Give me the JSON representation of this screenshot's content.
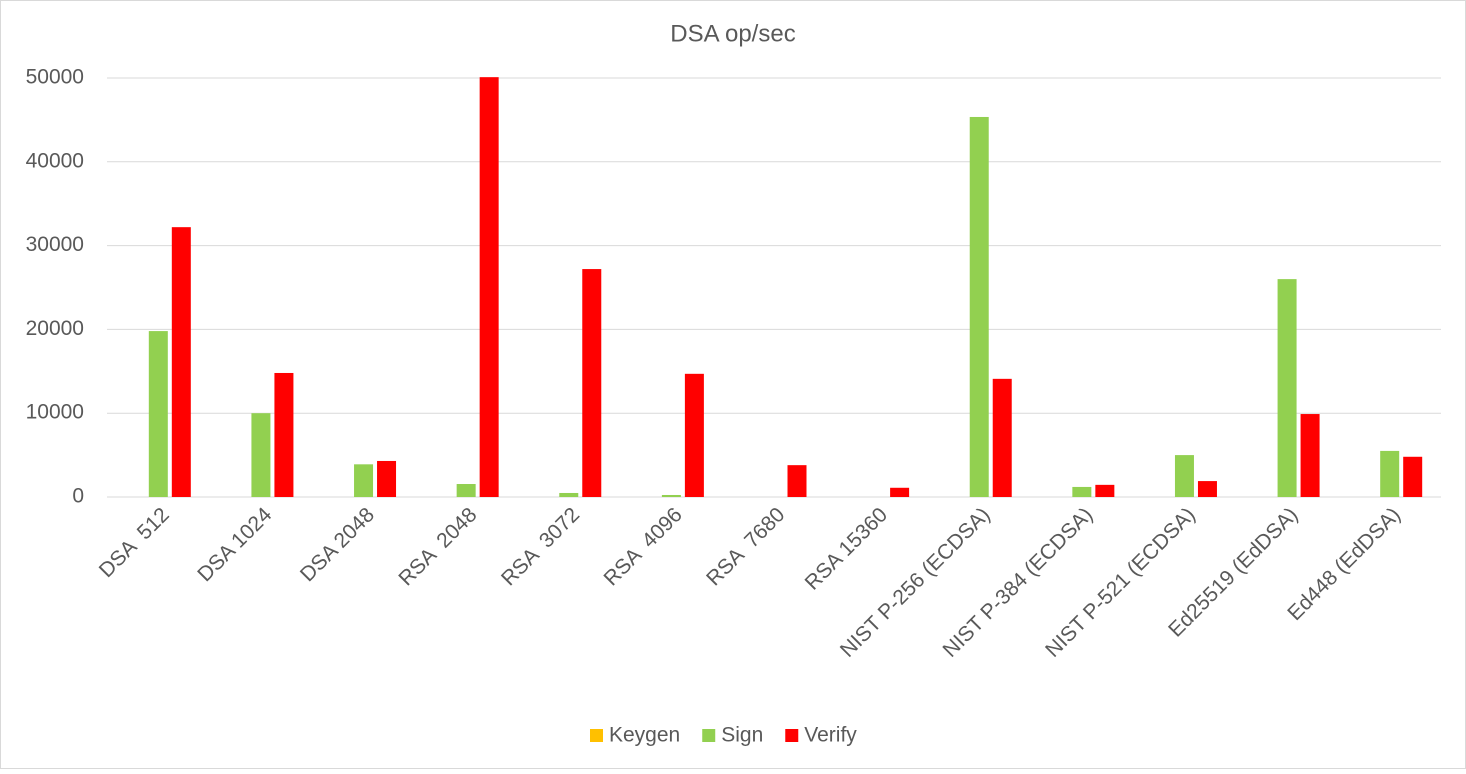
{
  "chart_data": {
    "type": "bar",
    "title": "DSA op/sec",
    "categories": [
      "DSA  512",
      "DSA 1024",
      "DSA 2048",
      "RSA  2048",
      "RSA  3072",
      "RSA  4096",
      "RSA  7680",
      "RSA 15360",
      "NIST P-256 (ECDSA)",
      "NIST P-384 (ECDSA)",
      "NIST P-521 (ECDSA)",
      "Ed25519 (EdDSA)",
      "Ed448 (EdDSA)"
    ],
    "series": [
      {
        "name": "Keygen",
        "color": "#ffc000",
        "values": [
          0,
          0,
          0,
          0,
          0,
          0,
          0,
          0,
          0,
          0,
          0,
          0,
          0
        ]
      },
      {
        "name": "Sign",
        "color": "#92d050",
        "values": [
          19800,
          10000,
          3900,
          1550,
          480,
          240,
          0,
          0,
          45350,
          1200,
          5000,
          26000,
          5500
        ]
      },
      {
        "name": "Verify",
        "color": "#ff0000",
        "values": [
          32200,
          14800,
          4300,
          50100,
          27200,
          14700,
          3800,
          1100,
          14100,
          1450,
          1900,
          9900,
          4800
        ]
      }
    ],
    "ylim": [
      0,
      50000
    ],
    "yticks": [
      0,
      10000,
      20000,
      30000,
      40000,
      50000
    ],
    "grid": true,
    "legend": "bottom"
  }
}
